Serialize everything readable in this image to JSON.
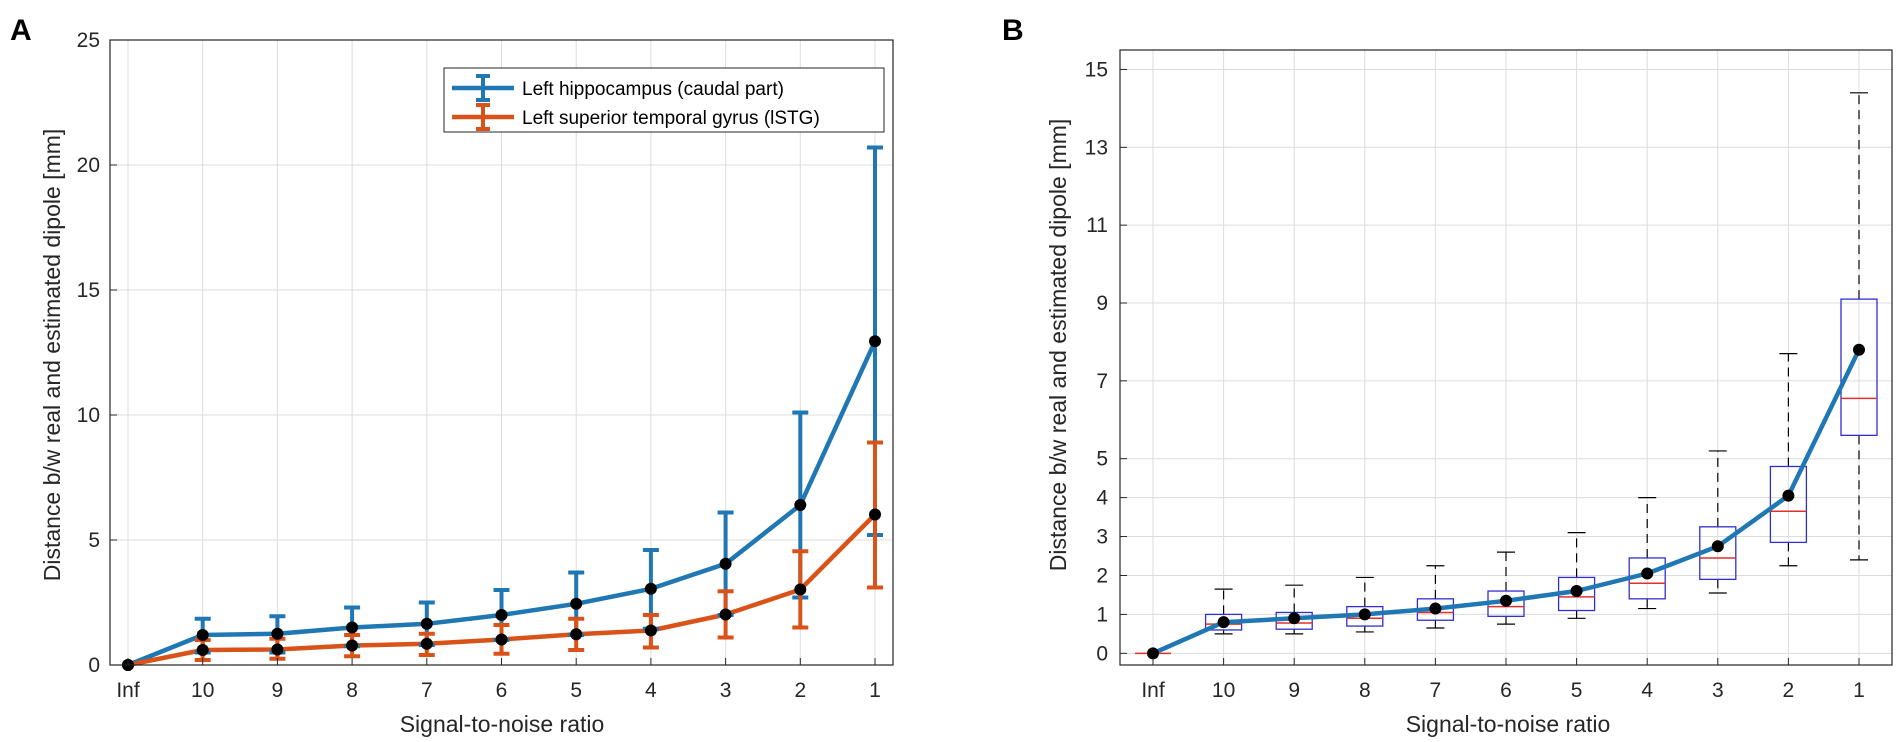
{
  "panel_labels": {
    "a": "A",
    "b": "B"
  },
  "colors": {
    "blue": "#1f77b4",
    "orange": "#d95319",
    "box_edge": "#3030d0",
    "median": "#e03030",
    "grid": "#dcdcdc",
    "whisker": "#000000",
    "marker": "#000000"
  },
  "chart_data": [
    {
      "type": "line",
      "panel": "A",
      "xlabel": "Signal-to-noise ratio",
      "ylabel": "Distance b/w real and estimated dipole [mm]",
      "categories": [
        "Inf",
        "10",
        "9",
        "8",
        "7",
        "6",
        "5",
        "4",
        "3",
        "2",
        "1"
      ],
      "ylim": [
        0,
        25
      ],
      "yticks": [
        0,
        5,
        10,
        15,
        20,
        25
      ],
      "grid": true,
      "legend_position": "top-right",
      "series": [
        {
          "name": "Left hippocampus (caudal part)",
          "color": "#1f77b4",
          "values": [
            0,
            1.2,
            1.25,
            1.5,
            1.65,
            2.0,
            2.45,
            3.05,
            4.05,
            6.4,
            12.95
          ],
          "lower": [
            0,
            0.5,
            0.5,
            0.75,
            0.8,
            1.0,
            1.2,
            1.45,
            2.0,
            2.7,
            5.2
          ],
          "upper": [
            0,
            1.85,
            1.95,
            2.3,
            2.5,
            3.0,
            3.7,
            4.6,
            6.1,
            10.1,
            20.7
          ]
        },
        {
          "name": "Left superior temporal gyrus (lSTG)",
          "color": "#d95319",
          "values": [
            0,
            0.6,
            0.62,
            0.78,
            0.85,
            1.02,
            1.23,
            1.38,
            2.02,
            3.02,
            6.02
          ],
          "lower": [
            0,
            0.2,
            0.25,
            0.35,
            0.4,
            0.45,
            0.6,
            0.7,
            1.1,
            1.5,
            3.1
          ],
          "upper": [
            0,
            1.0,
            1.05,
            1.2,
            1.25,
            1.6,
            1.85,
            2.0,
            2.95,
            4.55,
            8.9
          ]
        }
      ]
    },
    {
      "type": "box",
      "panel": "B",
      "xlabel": "Signal-to-noise ratio",
      "ylabel": "Distance b/w real and estimated dipole [mm]",
      "categories": [
        "Inf",
        "10",
        "9",
        "8",
        "7",
        "6",
        "5",
        "4",
        "3",
        "2",
        "1"
      ],
      "ylim": [
        -0.3,
        15.5
      ],
      "yticks": [
        0,
        1,
        2,
        3,
        4,
        5,
        7,
        9,
        11,
        13,
        15
      ],
      "grid": true,
      "mean_line_color": "#1f77b4",
      "boxes": [
        {
          "label": "Inf",
          "min": 0,
          "q1": 0,
          "median": 0,
          "q3": 0,
          "max": 0,
          "mean": 0
        },
        {
          "label": "10",
          "min": 0.5,
          "q1": 0.6,
          "median": 0.75,
          "q3": 1.0,
          "max": 1.65,
          "mean": 0.8
        },
        {
          "label": "9",
          "min": 0.5,
          "q1": 0.62,
          "median": 0.78,
          "q3": 1.05,
          "max": 1.75,
          "mean": 0.9
        },
        {
          "label": "8",
          "min": 0.55,
          "q1": 0.7,
          "median": 0.9,
          "q3": 1.2,
          "max": 1.95,
          "mean": 1.0
        },
        {
          "label": "7",
          "min": 0.65,
          "q1": 0.85,
          "median": 1.05,
          "q3": 1.4,
          "max": 2.25,
          "mean": 1.15
        },
        {
          "label": "6",
          "min": 0.75,
          "q1": 0.95,
          "median": 1.2,
          "q3": 1.6,
          "max": 2.6,
          "mean": 1.35
        },
        {
          "label": "5",
          "min": 0.9,
          "q1": 1.1,
          "median": 1.45,
          "q3": 1.95,
          "max": 3.1,
          "mean": 1.6
        },
        {
          "label": "4",
          "min": 1.15,
          "q1": 1.4,
          "median": 1.8,
          "q3": 2.45,
          "max": 4.0,
          "mean": 2.05
        },
        {
          "label": "3",
          "min": 1.55,
          "q1": 1.9,
          "median": 2.45,
          "q3": 3.25,
          "max": 5.2,
          "mean": 2.75
        },
        {
          "label": "2",
          "min": 2.25,
          "q1": 2.85,
          "median": 3.65,
          "q3": 4.8,
          "max": 7.7,
          "mean": 4.05
        },
        {
          "label": "1",
          "min": 2.4,
          "q1": 5.6,
          "median": 6.55,
          "q3": 9.1,
          "max": 14.4,
          "mean": 7.8
        }
      ]
    }
  ]
}
